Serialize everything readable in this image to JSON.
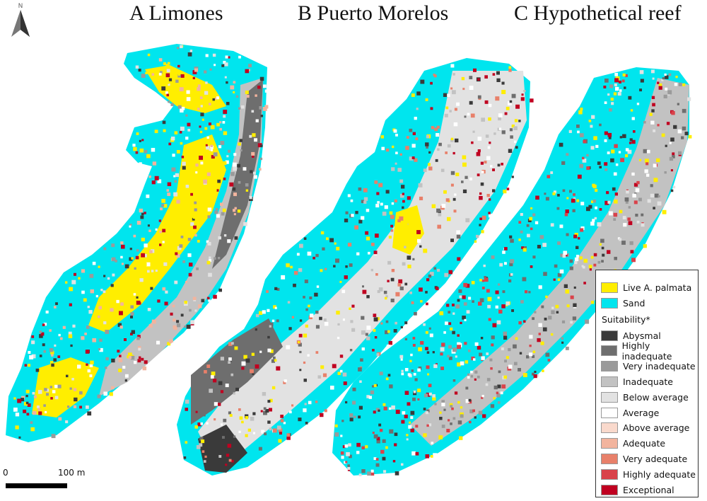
{
  "panels": [
    {
      "id": "A",
      "label": "A Limones"
    },
    {
      "id": "B",
      "label": "B Puerto Morelos"
    },
    {
      "id": "C",
      "label": "C Hypothetical reef"
    }
  ],
  "north_arrow": {
    "label": "N"
  },
  "scale_bar": {
    "start_label": "0",
    "end_label": "100 m"
  },
  "legend": {
    "classes": [
      {
        "label": "Live A. palmata",
        "color": "#ffee00"
      },
      {
        "label": "Sand",
        "color": "#00e5ee"
      }
    ],
    "suitability_title": "Suitability*",
    "suitability": [
      {
        "label": "Abysmal",
        "color": "#3a3a3a"
      },
      {
        "label": "Highly inadequate",
        "color": "#6e6e6e"
      },
      {
        "label": "Very inadequate",
        "color": "#9a9a9a"
      },
      {
        "label": "Inadequate",
        "color": "#c2c2c2"
      },
      {
        "label": "Below average",
        "color": "#e2e2e2"
      },
      {
        "label": "Average",
        "color": "#ffffff"
      },
      {
        "label": "Above average",
        "color": "#f9d9cc"
      },
      {
        "label": "Adequate",
        "color": "#f2b49e"
      },
      {
        "label": "Very adequate",
        "color": "#e8806a"
      },
      {
        "label": "Highly adequate",
        "color": "#d9424a"
      },
      {
        "label": "Exceptional",
        "color": "#c00020"
      }
    ]
  }
}
